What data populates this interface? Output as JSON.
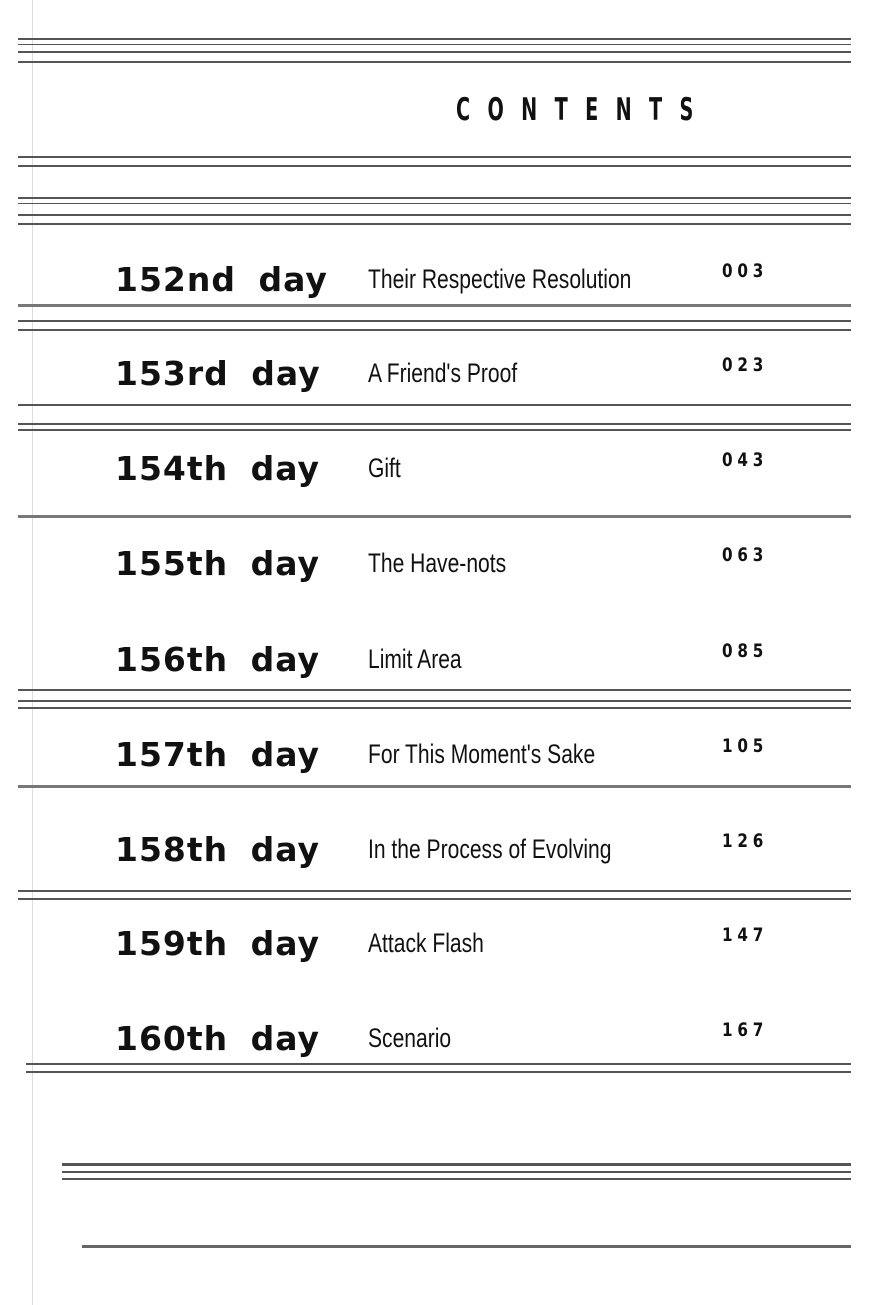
{
  "heading": "CONTENTS",
  "entries": [
    {
      "day": "152nd day",
      "title": "Their Respective Resolution",
      "page": "003"
    },
    {
      "day": "153rd day",
      "title": "A Friend's Proof",
      "page": "023"
    },
    {
      "day": "154th day",
      "title": "Gift",
      "page": "043"
    },
    {
      "day": "155th day",
      "title": "The Have-nots",
      "page": "063"
    },
    {
      "day": "156th day",
      "title": "Limit Area",
      "page": "085"
    },
    {
      "day": "157th day",
      "title": "For This Moment's Sake",
      "page": "105"
    },
    {
      "day": "158th day",
      "title": "In the Process of Evolving",
      "page": "126"
    },
    {
      "day": "159th day",
      "title": "Attack Flash",
      "page": "147"
    },
    {
      "day": "160th day",
      "title": "Scenario",
      "page": "167"
    }
  ]
}
